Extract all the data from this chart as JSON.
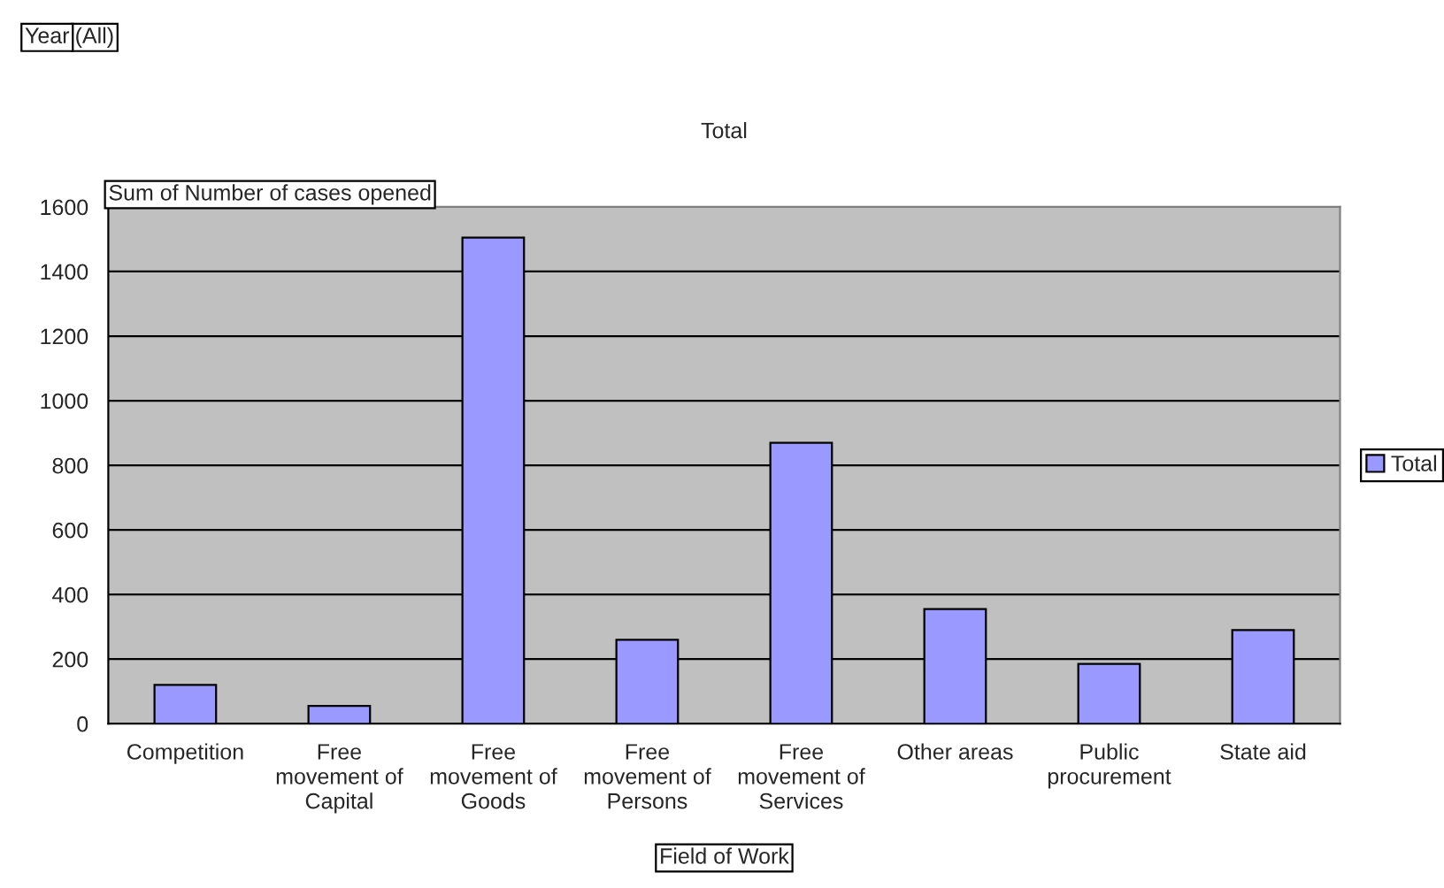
{
  "chart_data": {
    "type": "bar",
    "title": "Total",
    "xlabel": "Field of Work",
    "ylabel": "Sum of Number of cases opened",
    "annotations": [
      "Year",
      "(All)"
    ],
    "categories": [
      "Competition",
      "Free\nmovement of\nCapital",
      "Free\nmovement of\nGoods",
      "Free\nmovement of\nPersons",
      "Free\nmovement of\nServices",
      "Other areas",
      "Public\nprocurement",
      "State aid"
    ],
    "series": [
      {
        "name": "Total",
        "color": "#9999ff",
        "values": [
          120,
          55,
          1505,
          260,
          870,
          355,
          185,
          290
        ]
      }
    ],
    "ylim": [
      0,
      1600
    ],
    "yticks": [
      0,
      200,
      400,
      600,
      800,
      1000,
      1200,
      1400,
      1600
    ],
    "grid": "y",
    "legend": "right"
  }
}
